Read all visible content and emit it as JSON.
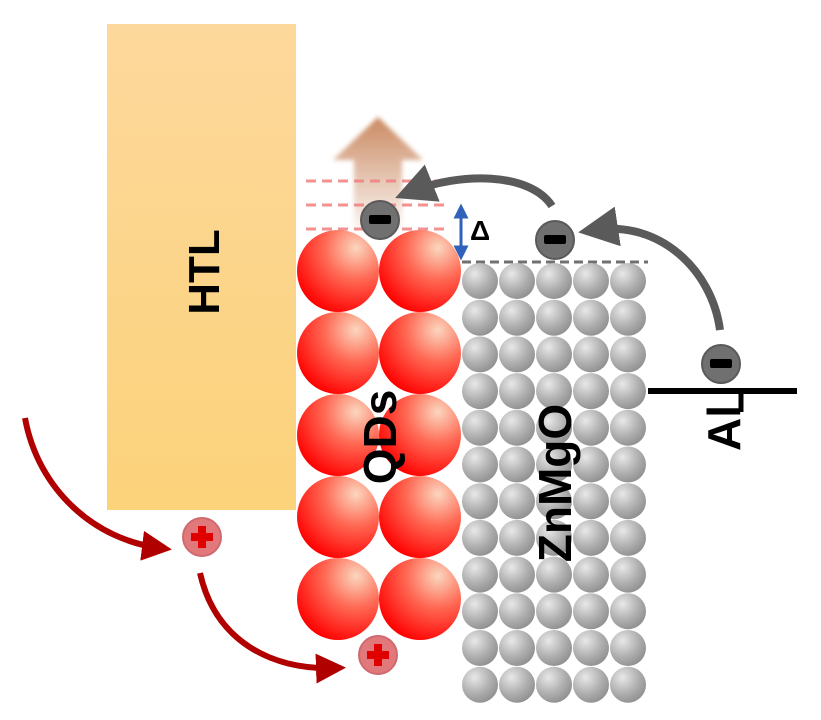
{
  "labels": {
    "htl": "HTL",
    "qds": "QDs",
    "znmgo": "ZnMgO",
    "al": "Al",
    "delta": "Δ"
  },
  "colors": {
    "htl_top": "#fdd89a",
    "htl_bottom": "#fcd27a",
    "qd_center": "#ff0000",
    "qd_highlight": "#fbd3b8",
    "znmgo_sphere": "#a8a8a8",
    "electron": "#707070",
    "hole": "#e0787c",
    "hole_sign": "#e00000",
    "electron_arrow": "#5a5a5a",
    "hole_arrow": "#b00000",
    "delta_arrow": "#2f62b8",
    "dash_levels": "#f08080",
    "up_arrow": "#c8845a"
  },
  "icons": {
    "electron": "minus-sign",
    "hole": "plus-sign",
    "emission": "up-arrow"
  }
}
